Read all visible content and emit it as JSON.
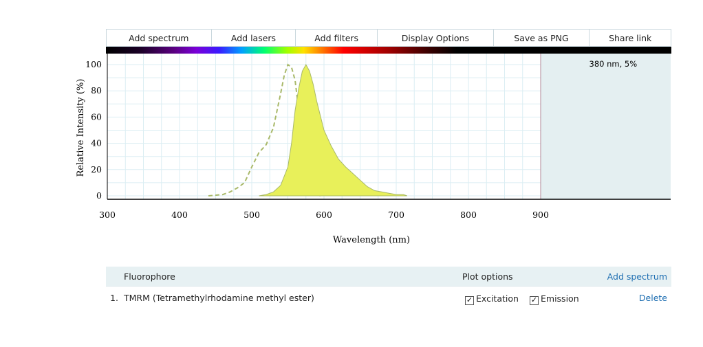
{
  "toolbar": {
    "buttons": [
      {
        "label": "Add spectrum"
      },
      {
        "label": "Add lasers"
      },
      {
        "label": "Add filters"
      },
      {
        "label": "Display Options"
      },
      {
        "label": "Save as PNG"
      },
      {
        "label": "Share link"
      }
    ]
  },
  "chart_data": {
    "type": "area",
    "xlabel": "Wavelength (nm)",
    "ylabel": "Relative Intensity (%)",
    "xlim": [
      300,
      1080
    ],
    "ylim": [
      0,
      100
    ],
    "xticks": [
      300,
      400,
      500,
      600,
      700,
      800,
      900
    ],
    "yticks": [
      0,
      20,
      40,
      60,
      80,
      100
    ],
    "grid": true,
    "annotations": [
      {
        "text": "380 nm, 5%",
        "x": 910,
        "y": 103
      }
    ],
    "shaded_region": {
      "x_start": 900,
      "x_end": 1080,
      "color": "#e4eff1"
    },
    "series": [
      {
        "style": "dashed",
        "color": "#a9b96a",
        "x": [
          440,
          460,
          470,
          480,
          490,
          500,
          510,
          520,
          530,
          540,
          545,
          550,
          555,
          560,
          565,
          570,
          575,
          580,
          585,
          590,
          595
        ],
        "y": [
          0,
          1,
          3,
          6,
          10,
          22,
          33,
          39,
          52,
          78,
          92,
          100,
          98,
          88,
          65,
          40,
          22,
          10,
          4,
          1,
          0
        ]
      },
      {
        "style": "filled",
        "color": "#a9b96a",
        "fill": "#e8f05a",
        "x": [
          510,
          520,
          530,
          540,
          550,
          555,
          560,
          565,
          570,
          575,
          580,
          585,
          590,
          600,
          610,
          620,
          630,
          640,
          650,
          660,
          670,
          680,
          690,
          700,
          710,
          715
        ],
        "y": [
          0,
          1,
          3,
          8,
          22,
          40,
          65,
          82,
          95,
          100,
          95,
          85,
          72,
          50,
          38,
          28,
          22,
          17,
          12,
          7,
          4,
          3,
          2,
          1,
          1,
          0
        ]
      }
    ]
  },
  "table": {
    "header": {
      "fluorophore": "Fluorophore",
      "plot_options": "Plot options",
      "add_spectrum": "Add spectrum"
    },
    "rows": [
      {
        "index": "1.",
        "name": "TMRM (Tetramethylrhodamine methyl ester)",
        "excitation": "Excitation",
        "emission": "Emission",
        "delete": "Delete"
      }
    ]
  }
}
